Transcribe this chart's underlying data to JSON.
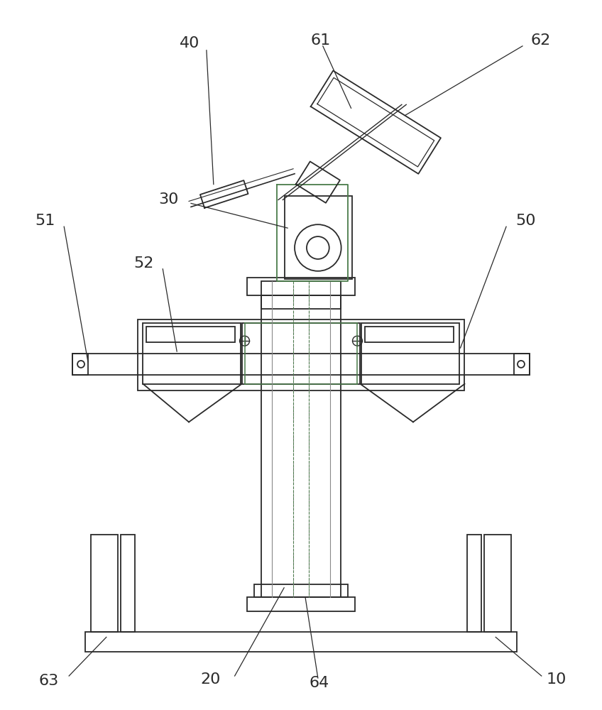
{
  "bg_color": "#ffffff",
  "line_color": "#2a2a2a",
  "gray_line": "#888888",
  "green_line": "#4a7c4a",
  "label_color": "#2a2a2a",
  "figsize": [
    8.48,
    10.0
  ],
  "dpi": 100
}
